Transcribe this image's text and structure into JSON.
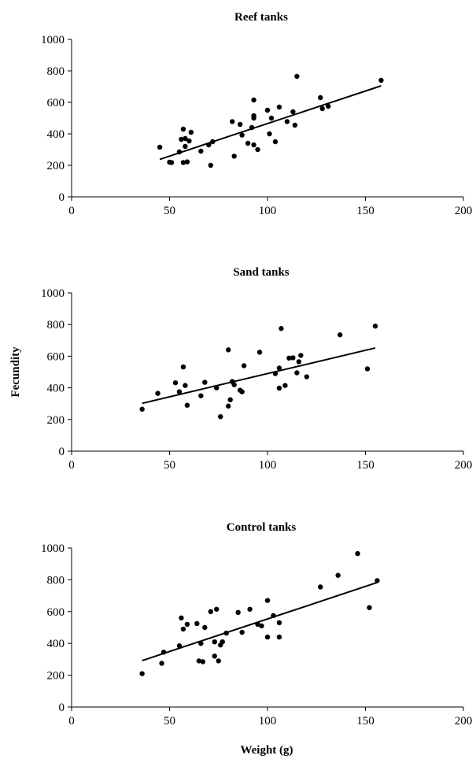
{
  "chart_data": [
    {
      "type": "scatter",
      "title": "Reef tanks",
      "xlabel": "",
      "ylabel": "",
      "xlim": [
        0,
        200
      ],
      "ylim": [
        0,
        1000
      ],
      "x_ticks": [
        "0",
        "50",
        "100",
        "150",
        "200"
      ],
      "y_ticks": [
        "0",
        "200",
        "400",
        "600",
        "800",
        "1000"
      ],
      "grid": false,
      "legend": "none",
      "trendline": {
        "x": [
          45,
          158
        ],
        "y": [
          238,
          705
        ]
      },
      "points": [
        [
          45,
          315
        ],
        [
          50,
          220
        ],
        [
          51,
          218
        ],
        [
          55,
          285
        ],
        [
          56,
          365
        ],
        [
          57,
          430
        ],
        [
          57,
          218
        ],
        [
          58,
          320
        ],
        [
          58,
          370
        ],
        [
          59,
          222
        ],
        [
          60,
          355
        ],
        [
          61,
          410
        ],
        [
          66,
          290
        ],
        [
          70,
          330
        ],
        [
          71,
          200
        ],
        [
          72,
          350
        ],
        [
          82,
          478
        ],
        [
          83,
          258
        ],
        [
          86,
          460
        ],
        [
          87,
          392
        ],
        [
          90,
          340
        ],
        [
          92,
          440
        ],
        [
          93,
          615
        ],
        [
          93,
          500
        ],
        [
          93,
          515
        ],
        [
          93,
          330
        ],
        [
          95,
          300
        ],
        [
          100,
          550
        ],
        [
          101,
          400
        ],
        [
          102,
          500
        ],
        [
          104,
          350
        ],
        [
          106,
          570
        ],
        [
          110,
          478
        ],
        [
          113,
          540
        ],
        [
          114,
          455
        ],
        [
          115,
          765
        ],
        [
          127,
          630
        ],
        [
          128,
          560
        ],
        [
          131,
          575
        ],
        [
          158,
          740
        ]
      ]
    },
    {
      "type": "scatter",
      "title": "Sand tanks",
      "xlabel": "",
      "ylabel": "Fecundity",
      "xlim": [
        0,
        200
      ],
      "ylim": [
        0,
        1000
      ],
      "x_ticks": [
        "0",
        "50",
        "100",
        "150",
        "200"
      ],
      "y_ticks": [
        "0",
        "200",
        "400",
        "600",
        "800",
        "1000"
      ],
      "grid": false,
      "legend": "none",
      "trendline": {
        "x": [
          36,
          155
        ],
        "y": [
          302,
          652
        ]
      },
      "points": [
        [
          36,
          265
        ],
        [
          44,
          365
        ],
        [
          53,
          432
        ],
        [
          55,
          375
        ],
        [
          57,
          532
        ],
        [
          58,
          415
        ],
        [
          59,
          290
        ],
        [
          66,
          350
        ],
        [
          68,
          435
        ],
        [
          74,
          400
        ],
        [
          76,
          218
        ],
        [
          80,
          640
        ],
        [
          80,
          285
        ],
        [
          81,
          325
        ],
        [
          82,
          440
        ],
        [
          83,
          420
        ],
        [
          86,
          385
        ],
        [
          87,
          375
        ],
        [
          88,
          540
        ],
        [
          96,
          625
        ],
        [
          104,
          490
        ],
        [
          106,
          525
        ],
        [
          106,
          398
        ],
        [
          107,
          775
        ],
        [
          109,
          415
        ],
        [
          111,
          588
        ],
        [
          113,
          590
        ],
        [
          115,
          495
        ],
        [
          116,
          565
        ],
        [
          117,
          605
        ],
        [
          120,
          470
        ],
        [
          137,
          735
        ],
        [
          151,
          520
        ],
        [
          155,
          790
        ]
      ]
    },
    {
      "type": "scatter",
      "title": "Control tanks",
      "xlabel": "Weight (g)",
      "ylabel": "",
      "xlim": [
        0,
        200
      ],
      "ylim": [
        0,
        1000
      ],
      "x_ticks": [
        "0",
        "50",
        "100",
        "150",
        "200"
      ],
      "y_ticks": [
        "0",
        "200",
        "400",
        "600",
        "800",
        "1000"
      ],
      "grid": false,
      "legend": "none",
      "trendline": {
        "x": [
          36,
          156
        ],
        "y": [
          292,
          783
        ]
      },
      "points": [
        [
          36,
          210
        ],
        [
          46,
          275
        ],
        [
          47,
          345
        ],
        [
          55,
          385
        ],
        [
          56,
          560
        ],
        [
          57,
          490
        ],
        [
          59,
          520
        ],
        [
          64,
          525
        ],
        [
          65,
          290
        ],
        [
          66,
          400
        ],
        [
          67,
          285
        ],
        [
          68,
          500
        ],
        [
          71,
          600
        ],
        [
          73,
          410
        ],
        [
          73,
          320
        ],
        [
          74,
          615
        ],
        [
          75,
          290
        ],
        [
          76,
          390
        ],
        [
          77,
          410
        ],
        [
          79,
          465
        ],
        [
          85,
          595
        ],
        [
          87,
          470
        ],
        [
          91,
          615
        ],
        [
          95,
          520
        ],
        [
          97,
          510
        ],
        [
          100,
          670
        ],
        [
          100,
          440
        ],
        [
          103,
          575
        ],
        [
          106,
          530
        ],
        [
          106,
          440
        ],
        [
          127,
          755
        ],
        [
          136,
          828
        ],
        [
          146,
          965
        ],
        [
          152,
          625
        ],
        [
          156,
          795
        ]
      ]
    }
  ]
}
